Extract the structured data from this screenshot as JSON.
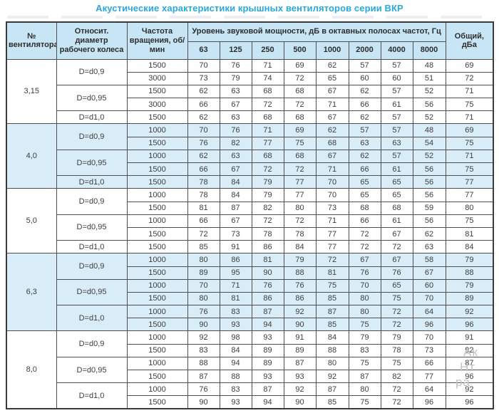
{
  "page": {
    "title": "Акустические характеристики крышных вентиляторов серии ВКР"
  },
  "colors": {
    "title_text": "#29a9de",
    "header_bg": "#c7e5f4",
    "group_tint_bg": "#d9edf8",
    "border": "#4f4f4f",
    "body_text": "#3d3d3d"
  },
  "watermark": {
    "lines": [
      "Ак",
      "Нт",
      "ра"
    ]
  },
  "chart_data": {
    "type": "table",
    "title": "Акустические характеристики крышных вентиляторов серии ВКР",
    "header": {
      "fan": "№ вентилятора",
      "diameter": "Относит. диаметр рабочего колеса",
      "rpm": "Частота вращения, об/мин",
      "levels_span": "Уровень звуковой мощности, дБ в октавных полосах частот, Гц",
      "freqs": [
        "63",
        "125",
        "250",
        "500",
        "1000",
        "2000",
        "4000",
        "8000"
      ],
      "total": "Общий, дБа"
    },
    "groups": [
      {
        "fan": "3,15",
        "sub": [
          {
            "d": "D=d0,9",
            "rows": [
              {
                "rpm": "1500",
                "levels": [
                  70,
                  76,
                  71,
                  69,
                  62,
                  57,
                  57,
                  48
                ],
                "total": 69
              },
              {
                "rpm": "3000",
                "levels": [
                  73,
                  79,
                  74,
                  72,
                  65,
                  60,
                  60,
                  51
                ],
                "total": 72
              }
            ]
          },
          {
            "d": "D=d0,95",
            "rows": [
              {
                "rpm": "1500",
                "levels": [
                  62,
                  63,
                  68,
                  68,
                  67,
                  62,
                  57,
                  52
                ],
                "total": 71
              },
              {
                "rpm": "3000",
                "levels": [
                  66,
                  67,
                  72,
                  72,
                  71,
                  66,
                  61,
                  56
                ],
                "total": 75
              }
            ]
          },
          {
            "d": "D=d1,0",
            "rows": [
              {
                "rpm": "1500",
                "levels": [
                  62,
                  63,
                  68,
                  68,
                  67,
                  62,
                  57,
                  52
                ],
                "total": 71
              }
            ]
          }
        ]
      },
      {
        "fan": "4,0",
        "sub": [
          {
            "d": "D=d0,9",
            "rows": [
              {
                "rpm": "1000",
                "levels": [
                  70,
                  76,
                  71,
                  69,
                  62,
                  57,
                  57,
                  48
                ],
                "total": 69
              },
              {
                "rpm": "1500",
                "levels": [
                  76,
                  82,
                  77,
                  75,
                  68,
                  63,
                  63,
                  54
                ],
                "total": 75
              }
            ]
          },
          {
            "d": "D=d0,95",
            "rows": [
              {
                "rpm": "1000",
                "levels": [
                  62,
                  63,
                  68,
                  68,
                  67,
                  62,
                  57,
                  52
                ],
                "total": 71
              },
              {
                "rpm": "1500",
                "levels": [
                  66,
                  67,
                  72,
                  72,
                  71,
                  66,
                  61,
                  56
                ],
                "total": 75
              }
            ]
          },
          {
            "d": "D=d1,0",
            "rows": [
              {
                "rpm": "1500",
                "levels": [
                  78,
                  84,
                  79,
                  77,
                  70,
                  65,
                  65,
                  56
                ],
                "total": 77
              }
            ]
          }
        ]
      },
      {
        "fan": "5,0",
        "sub": [
          {
            "d": "D=d0,9",
            "rows": [
              {
                "rpm": "1000",
                "levels": [
                  78,
                  84,
                  79,
                  77,
                  70,
                  65,
                  65,
                  56
                ],
                "total": 77
              },
              {
                "rpm": "1500",
                "levels": [
                  81,
                  87,
                  82,
                  80,
                  73,
                  68,
                  68,
                  59
                ],
                "total": 80
              }
            ]
          },
          {
            "d": "D=d0,95",
            "rows": [
              {
                "rpm": "1000",
                "levels": [
                  66,
                  67,
                  72,
                  72,
                  71,
                  66,
                  61,
                  56
                ],
                "total": 75
              },
              {
                "rpm": "1500",
                "levels": [
                  72,
                  73,
                  78,
                  78,
                  77,
                  72,
                  67,
                  62
                ],
                "total": 81
              }
            ]
          },
          {
            "d": "D=d1,0",
            "rows": [
              {
                "rpm": "1500",
                "levels": [
                  85,
                  91,
                  86,
                  84,
                  77,
                  72,
                  72,
                  63
                ],
                "total": 84
              }
            ]
          }
        ]
      },
      {
        "fan": "6,3",
        "sub": [
          {
            "d": "D=d0,9",
            "rows": [
              {
                "rpm": "1000",
                "levels": [
                  80,
                  86,
                  81,
                  79,
                  72,
                  67,
                  67,
                  58
                ],
                "total": 79
              },
              {
                "rpm": "1500",
                "levels": [
                  89,
                  95,
                  90,
                  88,
                  81,
                  76,
                  76,
                  67
                ],
                "total": 88
              }
            ]
          },
          {
            "d": "D=d0,95",
            "rows": [
              {
                "rpm": "1000",
                "levels": [
                  70,
                  71,
                  76,
                  76,
                  75,
                  70,
                  65,
                  60
                ],
                "total": 79
              },
              {
                "rpm": "1500",
                "levels": [
                  80,
                  81,
                  86,
                  86,
                  85,
                  80,
                  75,
                  70
                ],
                "total": 89
              }
            ]
          },
          {
            "d": "D=d1,0",
            "rows": [
              {
                "rpm": "1000",
                "levels": [
                  76,
                  83,
                  87,
                  92,
                  87,
                  80,
                  72,
                  64
                ],
                "total": 92
              },
              {
                "rpm": "1500",
                "levels": [
                  90,
                  93,
                  94,
                  90,
                  85,
                  75,
                  72,
                  96
                ],
                "total": 96
              }
            ]
          }
        ]
      },
      {
        "fan": "8,0",
        "sub": [
          {
            "d": "D=d0,9",
            "rows": [
              {
                "rpm": "1000",
                "levels": [
                  92,
                  98,
                  93,
                  91,
                  84,
                  79,
                  79,
                  70
                ],
                "total": 91
              },
              {
                "rpm": "1500",
                "levels": [
                  83,
                  84,
                  89,
                  89,
                  88,
                  83,
                  78,
                  73
                ],
                "total": 92
              }
            ]
          },
          {
            "d": "D=d0,95",
            "rows": [
              {
                "rpm": "1000",
                "levels": [
                  88,
                  94,
                  89,
                  87,
                  80,
                  75,
                  75,
                  66
                ],
                "total": 87
              },
              {
                "rpm": "1500",
                "levels": [
                  87,
                  88,
                  93,
                  93,
                  92,
                  87,
                  82,
                  77
                ],
                "total": 96
              }
            ]
          },
          {
            "d": "D=d1,0",
            "rows": [
              {
                "rpm": "1000",
                "levels": [
                  76,
                  83,
                  87,
                  92,
                  87,
                  80,
                  72,
                  64
                ],
                "total": 92
              },
              {
                "rpm": "1500",
                "levels": [
                  90,
                  93,
                  94,
                  90,
                  85,
                  75,
                  72,
                  96
                ],
                "total": 96
              }
            ]
          }
        ]
      }
    ]
  }
}
